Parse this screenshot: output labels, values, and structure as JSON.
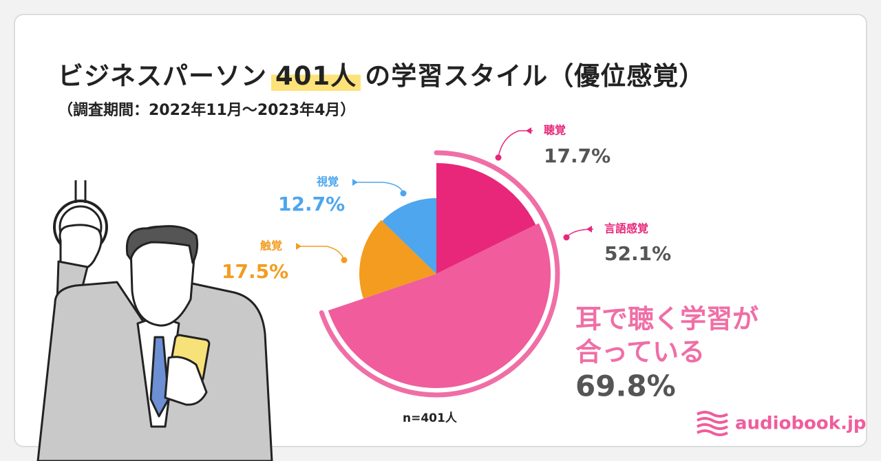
{
  "chart_data": {
    "type": "pie",
    "title": "ビジネスパーソン",
    "title_highlight": "401人",
    "title_suffix": "の学習スタイル（優位感覚）",
    "subtitle": "（調査期間：2022年11月〜2023年4月）",
    "categories": [
      "聴覚",
      "言語感覚",
      "触覚",
      "視覚"
    ],
    "values": [
      17.7,
      52.1,
      17.5,
      12.7
    ],
    "value_labels": [
      "17.7%",
      "52.1%",
      "17.5%",
      "12.7%"
    ],
    "colors": [
      "#e8277a",
      "#f05c9c",
      "#f39c1f",
      "#4da6ee"
    ],
    "label_colors": [
      "#e8277a",
      "#e8277a",
      "#f39c1f",
      "#4da6ee"
    ],
    "value_label_colors": [
      "#555555",
      "#555555",
      "#f39c1f",
      "#4da6ee"
    ],
    "note": "n=401人",
    "callout": {
      "line1": "耳で聴く学習が",
      "line2": "合っている",
      "value": 69.8,
      "value_label": "69.8%",
      "color": "#f06ea6"
    }
  },
  "brand": "audiobook.jp"
}
